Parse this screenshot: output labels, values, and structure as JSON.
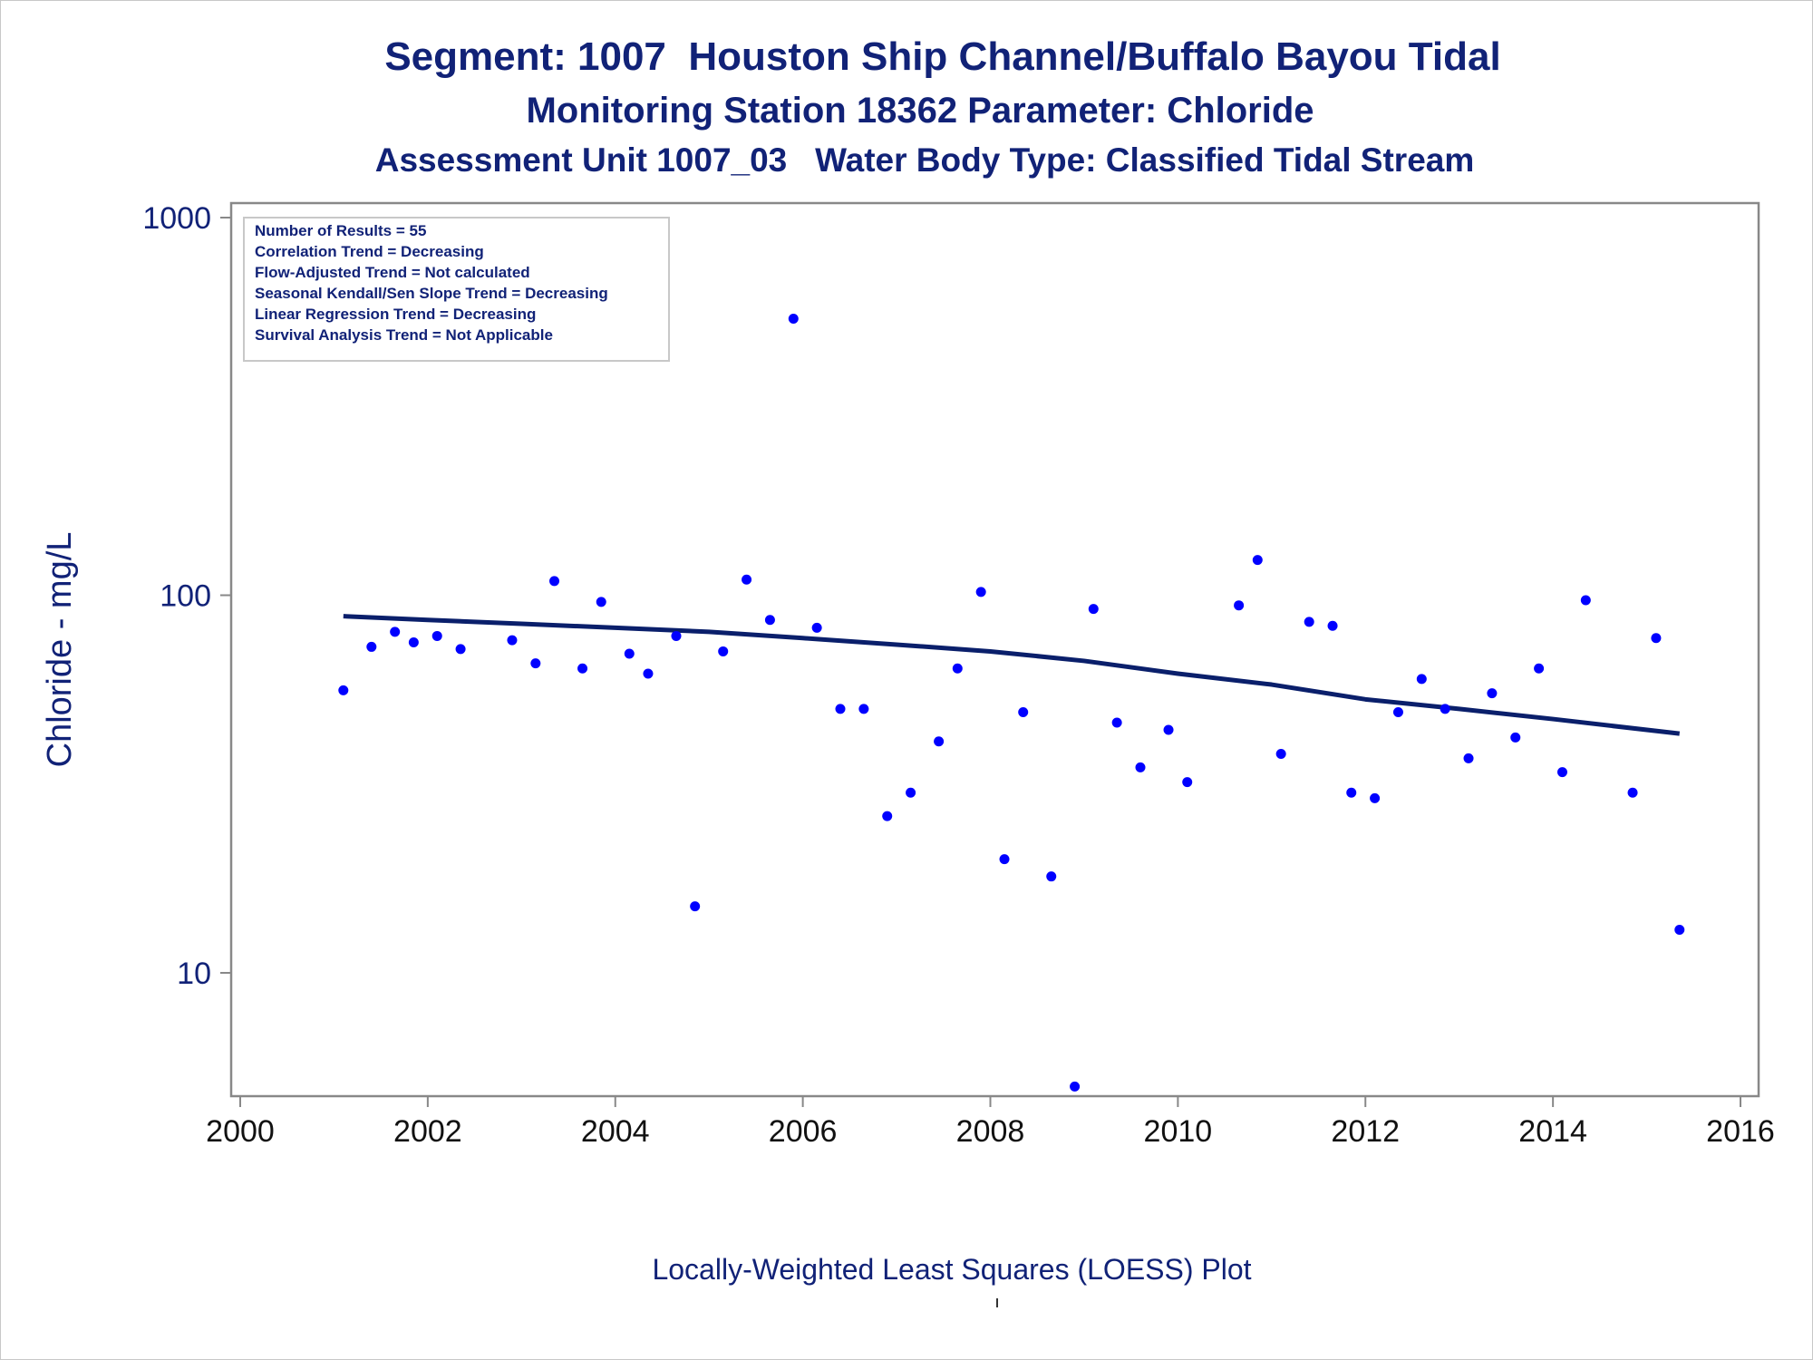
{
  "titles": {
    "line1": "Segment: 1007  Houston Ship Channel/Buffalo Bayou Tidal",
    "line2": "Monitoring Station 18362 Parameter: Chloride",
    "line3": "Assessment Unit 1007_03   Water Body Type: Classified Tidal Stream"
  },
  "footer": "Locally-Weighted Least Squares (LOESS) Plot",
  "colors": {
    "title": "#112277",
    "points": "#0000ff",
    "loess_line": "#0a1f6b",
    "axis": "#888888",
    "tick_label_x": "#111111",
    "tick_label_y": "#112277"
  },
  "annotations": [
    "Number of Results = 55",
    "Correlation Trend = Decreasing",
    "Flow-Adjusted Trend = Not calculated",
    "Seasonal Kendall/Sen Slope Trend = Decreasing",
    "Linear Regression Trend = Decreasing",
    "Survival Analysis Trend = Not Applicable"
  ],
  "chart_data": {
    "type": "scatter",
    "title": "Segment: 1007  Houston Ship Channel/Buffalo Bayou Tidal",
    "xlabel": "",
    "ylabel": "Chloride - mg/L",
    "yscale": "log",
    "xlim": [
      2000,
      2016
    ],
    "ylim": [
      4.6,
      1000
    ],
    "x_ticks": [
      "2000",
      "2002",
      "2004",
      "2006",
      "2008",
      "2010",
      "2012",
      "2014",
      "2016"
    ],
    "y_ticks": [
      "10",
      "100",
      "1000"
    ],
    "grid": false,
    "legend": "none",
    "series": [
      {
        "type": "scatter",
        "points": [
          [
            2001.1,
            56
          ],
          [
            2001.4,
            73
          ],
          [
            2001.65,
            80
          ],
          [
            2001.85,
            75
          ],
          [
            2002.1,
            78
          ],
          [
            2002.35,
            72
          ],
          [
            2002.9,
            76
          ],
          [
            2003.15,
            66
          ],
          [
            2003.35,
            109
          ],
          [
            2003.65,
            64
          ],
          [
            2003.85,
            96
          ],
          [
            2004.15,
            70
          ],
          [
            2004.35,
            62
          ],
          [
            2004.65,
            78
          ],
          [
            2004.85,
            15
          ],
          [
            2005.15,
            71
          ],
          [
            2005.4,
            110
          ],
          [
            2005.65,
            86
          ],
          [
            2005.9,
            540
          ],
          [
            2006.15,
            82
          ],
          [
            2006.4,
            50
          ],
          [
            2006.65,
            50
          ],
          [
            2006.9,
            26
          ],
          [
            2007.15,
            30
          ],
          [
            2007.45,
            41
          ],
          [
            2007.65,
            64
          ],
          [
            2007.9,
            102
          ],
          [
            2008.15,
            20
          ],
          [
            2008.35,
            49
          ],
          [
            2008.65,
            18
          ],
          [
            2008.9,
            5
          ],
          [
            2009.1,
            92
          ],
          [
            2009.35,
            46
          ],
          [
            2009.6,
            35
          ],
          [
            2009.9,
            44
          ],
          [
            2010.1,
            32
          ],
          [
            2010.65,
            94
          ],
          [
            2010.85,
            124
          ],
          [
            2011.1,
            38
          ],
          [
            2011.4,
            85
          ],
          [
            2011.65,
            83
          ],
          [
            2011.85,
            30
          ],
          [
            2012.1,
            29
          ],
          [
            2012.35,
            49
          ],
          [
            2012.6,
            60
          ],
          [
            2012.85,
            50
          ],
          [
            2013.1,
            37
          ],
          [
            2013.35,
            55
          ],
          [
            2013.6,
            42
          ],
          [
            2013.85,
            64
          ],
          [
            2014.1,
            34
          ],
          [
            2014.35,
            97
          ],
          [
            2014.85,
            30
          ],
          [
            2015.1,
            77
          ],
          [
            2015.35,
            13
          ]
        ]
      },
      {
        "type": "line",
        "points": [
          [
            2001.1,
            88
          ],
          [
            2002.0,
            86
          ],
          [
            2003.0,
            84
          ],
          [
            2004.0,
            82
          ],
          [
            2005.0,
            80
          ],
          [
            2006.0,
            77
          ],
          [
            2007.0,
            74
          ],
          [
            2008.0,
            71
          ],
          [
            2009.0,
            67
          ],
          [
            2010.0,
            62
          ],
          [
            2011.0,
            58
          ],
          [
            2012.0,
            53
          ],
          [
            2013.0,
            50
          ],
          [
            2014.0,
            47
          ],
          [
            2015.35,
            43
          ]
        ]
      }
    ]
  }
}
